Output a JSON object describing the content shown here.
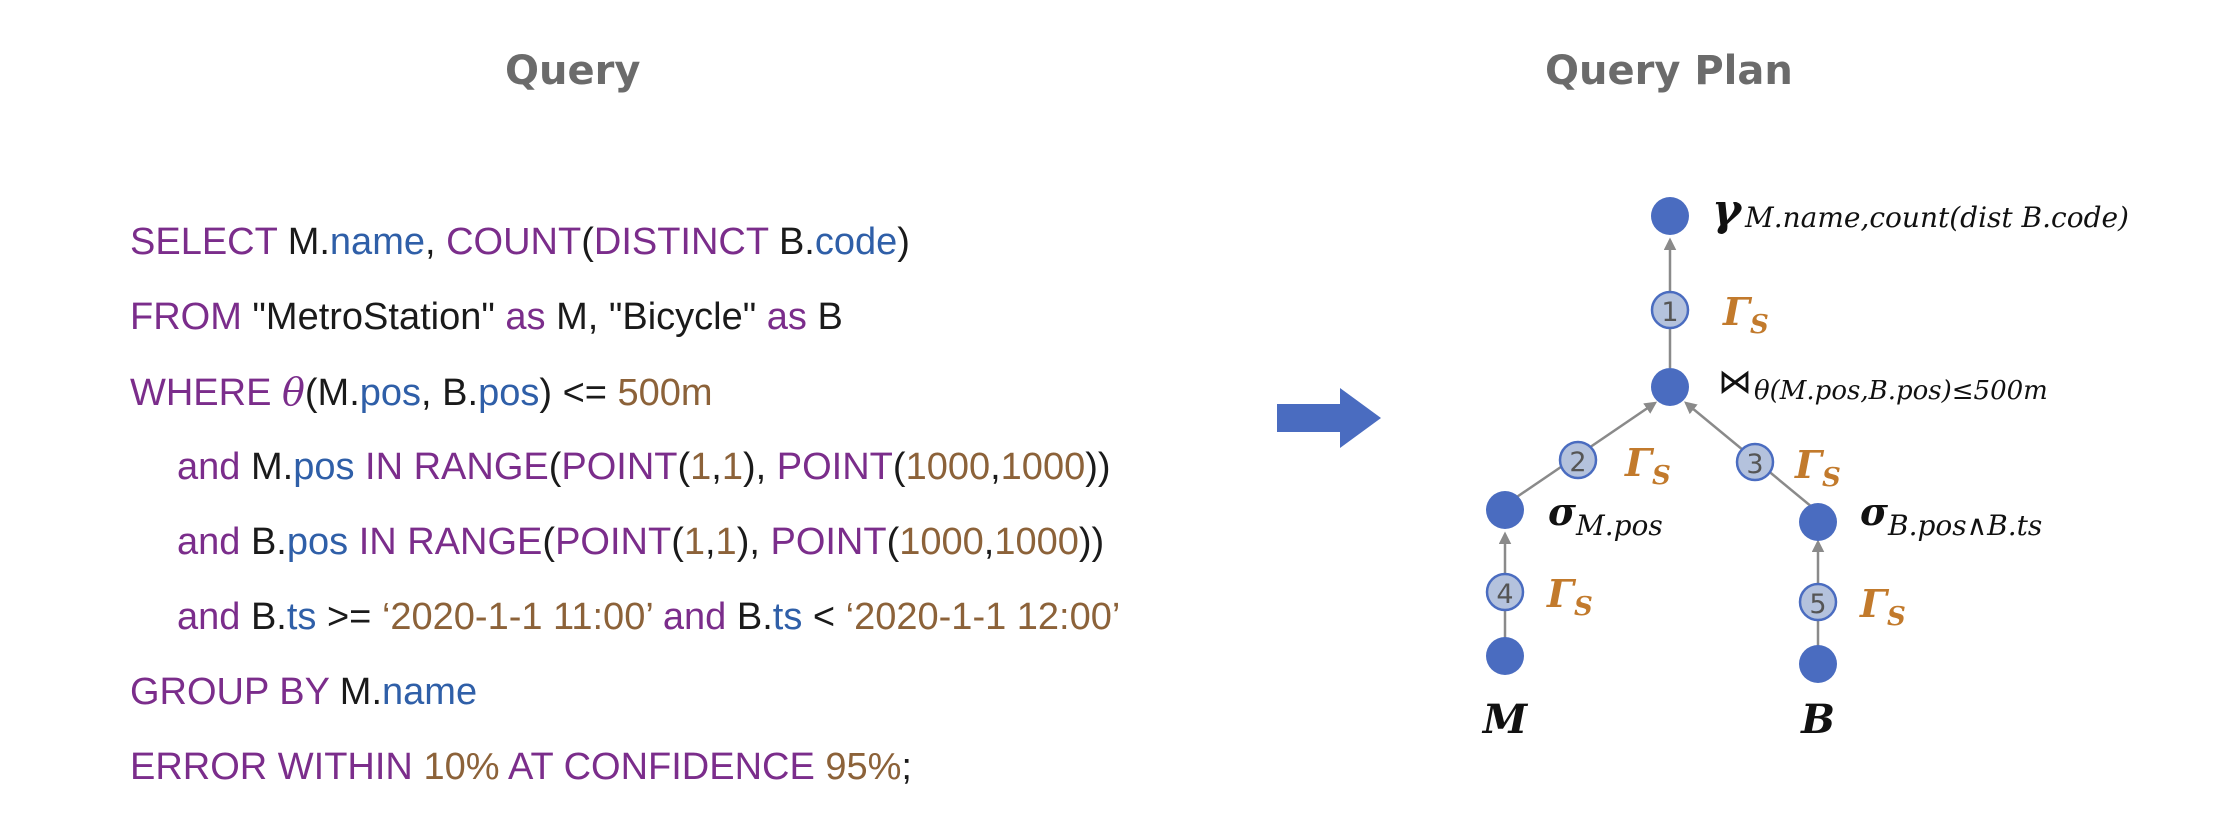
{
  "titles": {
    "query": "Query",
    "plan": "Query Plan"
  },
  "sql": {
    "l1": [
      "SELECT",
      " M.",
      "name",
      ", ",
      "COUNT",
      "(",
      "DISTINCT",
      " B.",
      "code",
      ")"
    ],
    "l2": [
      "FROM",
      " \"MetroStation\" ",
      "as",
      " M, \"Bicycle\" ",
      "as",
      " B"
    ],
    "l3": [
      "WHERE ",
      "θ",
      "(M.",
      "pos",
      ", B.",
      "pos",
      ") <= ",
      "500m"
    ],
    "l4": [
      "and",
      " M.",
      "pos",
      " IN RANGE",
      "(",
      "POINT",
      "(",
      "1",
      ",",
      "1",
      "), ",
      "POINT",
      "(",
      "1000",
      ",",
      "1000",
      "))"
    ],
    "l5": [
      "and",
      " B.",
      "pos",
      " IN RANGE",
      "(",
      "POINT",
      "(",
      "1",
      ",",
      "1",
      "), ",
      "POINT",
      "(",
      "1000",
      ",",
      "1000",
      "))"
    ],
    "l6": [
      "and",
      " B.",
      "ts",
      " >= ",
      "‘2020-1-1 11:00’",
      " and",
      " B.",
      "ts",
      " < ",
      "‘2020-1-1 12:00’"
    ],
    "l7": [
      "GROUP BY",
      " M.",
      "name"
    ],
    "l8": [
      "ERROR WITHIN ",
      "10%",
      " AT CONFIDENCE ",
      "95%",
      ";"
    ]
  },
  "plan": {
    "aggregate": {
      "symbol": "γ",
      "sub": "M.name,count(dist B.code)"
    },
    "join": {
      "symbol": "⋈",
      "sub": "θ(M.pos,B.pos)≤500m"
    },
    "select_m": {
      "symbol": "σ",
      "sub": "M.pos"
    },
    "select_b": {
      "symbol": "σ",
      "sub": "B.pos∧B.ts"
    },
    "leaf_m": "M",
    "leaf_b": "B",
    "edge_labels": [
      "1",
      "2",
      "3",
      "4",
      "5"
    ],
    "gamma": {
      "symbol": "Γ",
      "sub": "S"
    }
  },
  "colors": {
    "node": "#4a6cc0",
    "arrow": "#4a6cc0",
    "gamma": "#c27a2c",
    "edge": "#8a8a8a",
    "badge_fill": "#b4c2dd",
    "badge_stroke": "#4a6cc0"
  }
}
